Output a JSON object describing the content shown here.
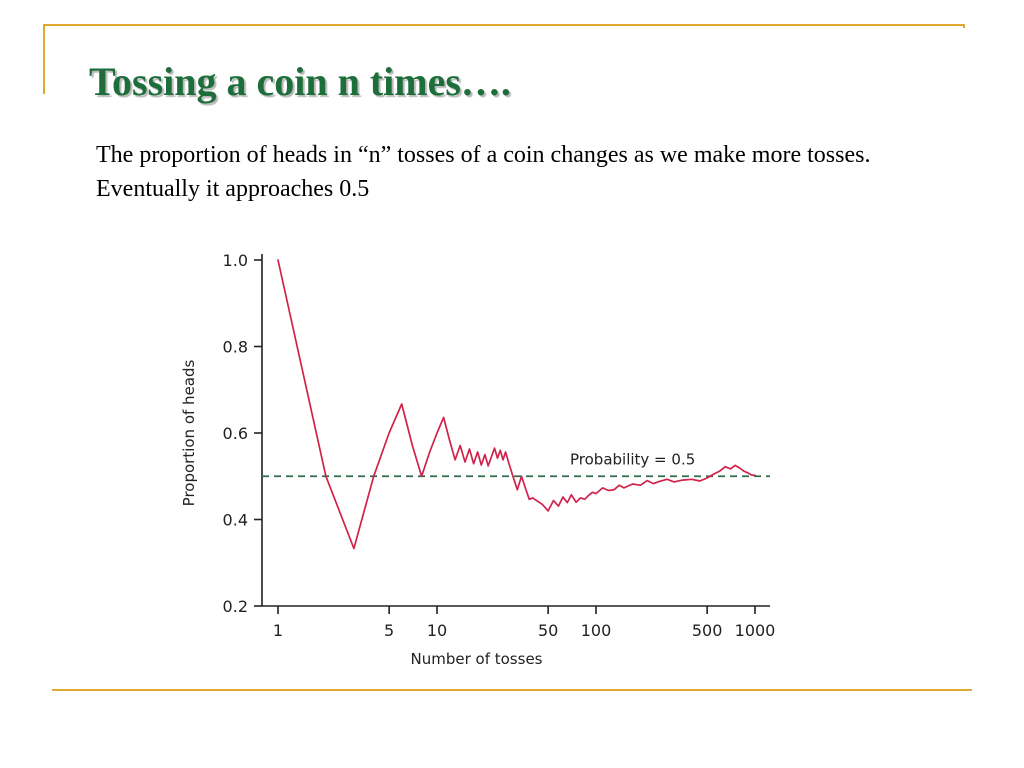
{
  "slide": {
    "title": "Tossing a coin n times….",
    "body": "The proportion of heads in “n” tosses of a coin changes as we make more tosses. Eventually it approaches 0.5"
  },
  "colors": {
    "title": "#1e6e3c",
    "frame": "#dfa82e",
    "series": "#d0224a",
    "reference": "#2e6e4e"
  },
  "chart_data": {
    "type": "line",
    "title": "",
    "xlabel": "Number of tosses",
    "ylabel": "Proportion of heads",
    "xscale": "log",
    "xlim": [
      1,
      1000
    ],
    "ylim": [
      0.2,
      1.0
    ],
    "xticks": [
      1,
      5,
      10,
      50,
      100,
      500,
      1000
    ],
    "xtick_labels": [
      "1",
      "5",
      "10",
      "50",
      "100",
      "500",
      "1000"
    ],
    "yticks": [
      0.2,
      0.4,
      0.6,
      0.8,
      1.0
    ],
    "ytick_labels": [
      "0.2",
      "0.4",
      "0.6",
      "0.8",
      "1.0"
    ],
    "grid": false,
    "reference_line": {
      "y": 0.5,
      "label": "Probability = 0.5",
      "style": "dashed"
    },
    "series": [
      {
        "x": [
          1,
          2,
          3,
          4,
          5,
          6,
          7,
          8,
          9,
          10,
          11,
          12,
          13,
          14,
          15,
          16,
          17,
          18,
          19,
          20,
          21,
          22,
          23,
          24,
          25,
          26,
          27,
          28,
          30,
          32,
          34,
          36,
          38,
          40,
          43,
          46,
          50,
          54,
          58,
          62,
          66,
          70,
          75,
          80,
          85,
          90,
          95,
          100,
          110,
          120,
          130,
          140,
          150,
          170,
          190,
          210,
          230,
          250,
          280,
          310,
          350,
          400,
          450,
          500,
          550,
          600,
          650,
          700,
          750,
          800,
          850,
          900,
          950,
          1000
        ],
        "y": [
          1.0,
          0.5,
          0.333,
          0.5,
          0.6,
          0.667,
          0.571,
          0.5,
          0.556,
          0.6,
          0.636,
          0.583,
          0.538,
          0.571,
          0.533,
          0.563,
          0.529,
          0.556,
          0.526,
          0.55,
          0.524,
          0.545,
          0.565,
          0.542,
          0.56,
          0.538,
          0.556,
          0.536,
          0.5,
          0.469,
          0.5,
          0.472,
          0.447,
          0.45,
          0.442,
          0.435,
          0.42,
          0.444,
          0.431,
          0.452,
          0.439,
          0.457,
          0.44,
          0.45,
          0.447,
          0.456,
          0.463,
          0.46,
          0.473,
          0.467,
          0.469,
          0.479,
          0.473,
          0.482,
          0.479,
          0.49,
          0.483,
          0.488,
          0.493,
          0.487,
          0.491,
          0.493,
          0.489,
          0.496,
          0.505,
          0.512,
          0.522,
          0.517,
          0.525,
          0.519,
          0.512,
          0.508,
          0.503,
          0.502
        ]
      }
    ]
  }
}
